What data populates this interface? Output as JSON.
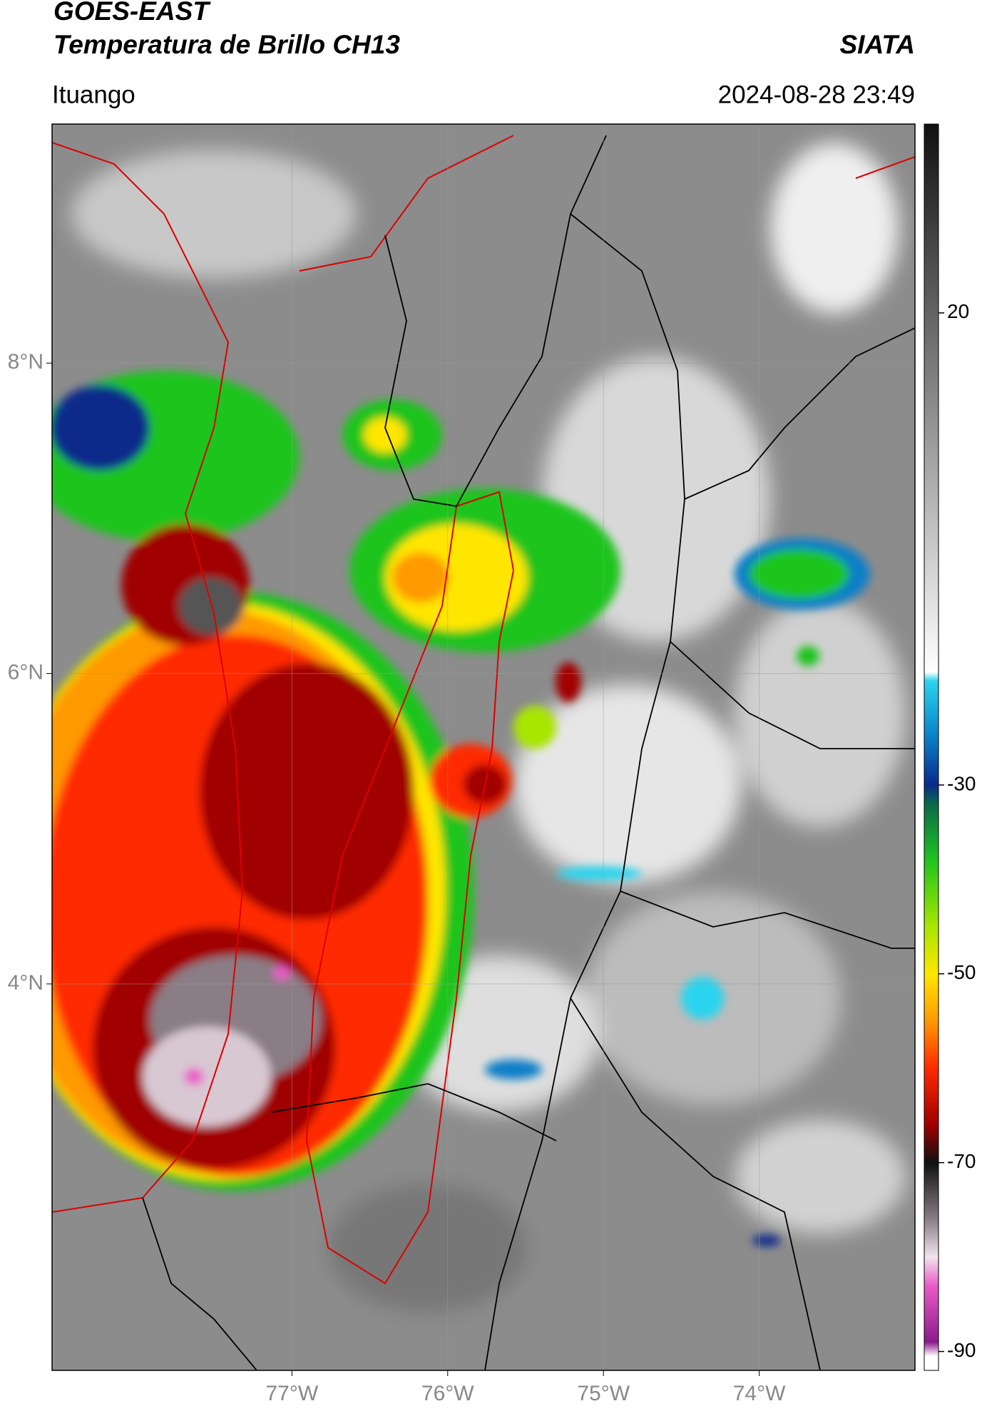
{
  "header": {
    "title": "GOES-EAST",
    "subtitle": "Temperatura de Brillo CH13",
    "source": "SIATA",
    "place": "Ituango",
    "datetime": "2024-08-28 23:49"
  },
  "map": {
    "xlim": [
      -78.54,
      -73.0
    ],
    "ylim": [
      1.51,
      9.54
    ],
    "grid": true,
    "xticks": [
      {
        "value": -77,
        "label": "77°W"
      },
      {
        "value": -76,
        "label": "76°W"
      },
      {
        "value": -75,
        "label": "75°W"
      },
      {
        "value": -74,
        "label": "74°W"
      }
    ],
    "yticks": [
      {
        "value": 8,
        "label": "8°N"
      },
      {
        "value": 6,
        "label": "6°N"
      },
      {
        "value": 4,
        "label": "4°N"
      }
    ]
  },
  "colorbar": {
    "lim": [
      -92,
      40
    ],
    "ticks": [
      20,
      -30,
      -50,
      -70,
      -90
    ],
    "stops": [
      {
        "value": 40,
        "color": "#111111"
      },
      {
        "value": -18,
        "color": "#ffffff"
      },
      {
        "value": -19,
        "color": "#2ad4ee"
      },
      {
        "value": -25,
        "color": "#0a7fc8"
      },
      {
        "value": -30,
        "color": "#0a2a8a"
      },
      {
        "value": -32,
        "color": "#0b6a4a"
      },
      {
        "value": -38,
        "color": "#1fc41f"
      },
      {
        "value": -45,
        "color": "#a8e600"
      },
      {
        "value": -50,
        "color": "#ffe600"
      },
      {
        "value": -55,
        "color": "#ff9a00"
      },
      {
        "value": -60,
        "color": "#ff2a00"
      },
      {
        "value": -66,
        "color": "#a00000"
      },
      {
        "value": -70,
        "color": "#111111"
      },
      {
        "value": -76,
        "color": "#8a7d85"
      },
      {
        "value": -80,
        "color": "#f2e4ee"
      },
      {
        "value": -83,
        "color": "#ea5cc8"
      },
      {
        "value": -89,
        "color": "#8a1a8a"
      },
      {
        "value": -90.5,
        "color": "#ffffff"
      },
      {
        "value": -92,
        "color": "#ffffff"
      }
    ]
  }
}
